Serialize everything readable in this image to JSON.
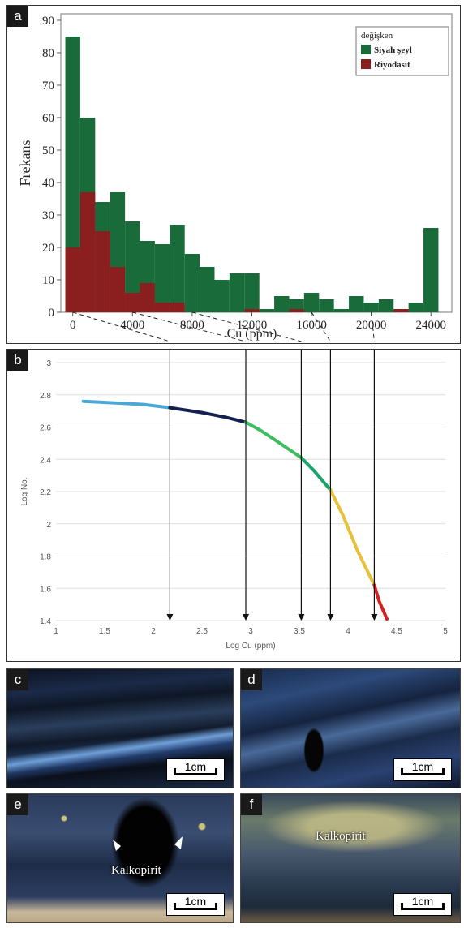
{
  "panels": {
    "a": "a",
    "b": "b",
    "c": "c",
    "d": "d",
    "e": "e",
    "f": "f"
  },
  "chart_data": [
    {
      "type": "bar",
      "panel": "a",
      "xlabel": "Cu (ppm)",
      "ylabel": "Frekans",
      "xlim": [
        -800,
        25400
      ],
      "ylim": [
        0,
        92
      ],
      "xticks": [
        0,
        4000,
        8000,
        12000,
        16000,
        20000,
        24000
      ],
      "xtick_labels": [
        "0",
        "4000",
        "8000",
        "12000",
        "16000",
        "20000",
        "24000"
      ],
      "yticks": [
        0,
        10,
        20,
        30,
        40,
        50,
        60,
        70,
        80,
        90
      ],
      "ytick_labels": [
        "0",
        "10",
        "20",
        "30",
        "40",
        "50",
        "60",
        "70",
        "80",
        "90"
      ],
      "bin_width": 1000,
      "bin_starts": [
        -500,
        500,
        1500,
        2500,
        3500,
        4500,
        5500,
        6500,
        7500,
        8500,
        9500,
        10500,
        11500,
        12500,
        13500,
        14500,
        15500,
        16500,
        17500,
        18500,
        19500,
        20500,
        21500,
        22500,
        23500
      ],
      "legend_title": "değişken",
      "legend_position": "top-right",
      "series": [
        {
          "name": "Siyah şeyl",
          "color": "#1a6b3a",
          "values": [
            85,
            60,
            34,
            37,
            28,
            22,
            21,
            27,
            18,
            14,
            10,
            12,
            12,
            1,
            5,
            4,
            6,
            4,
            1,
            5,
            3,
            4,
            1,
            3,
            26
          ]
        },
        {
          "name": "Riyodasit",
          "color": "#8b1e1e",
          "values": [
            20,
            37,
            25,
            14,
            6,
            9,
            3,
            3,
            0,
            0,
            0,
            0,
            1,
            0,
            0,
            1,
            0,
            0,
            0,
            0,
            0,
            0,
            1,
            0,
            0
          ]
        }
      ]
    },
    {
      "type": "line",
      "panel": "b",
      "xlabel": "Log Cu (ppm)",
      "ylabel": "Log No.",
      "xlim": [
        1,
        5
      ],
      "ylim": [
        1.4,
        3
      ],
      "xticks": [
        1,
        1.5,
        2,
        2.5,
        3,
        3.5,
        4,
        4.5,
        5
      ],
      "xtick_labels": [
        "1",
        "1.5",
        "2",
        "2.5",
        "3",
        "3.5",
        "4",
        "4.5",
        "5"
      ],
      "yticks": [
        1.4,
        1.6,
        1.8,
        2,
        2.2,
        2.4,
        2.6,
        2.8,
        3
      ],
      "ytick_labels": [
        "1.4",
        "1.6",
        "1.8",
        "2",
        "2.2",
        "2.4",
        "2.6",
        "2.8",
        "3"
      ],
      "series": [
        {
          "color": "#4aa8d8",
          "x": [
            1.28,
            1.6,
            1.9,
            2.17
          ],
          "y": [
            2.76,
            2.75,
            2.74,
            2.72
          ]
        },
        {
          "color": "#14204f",
          "x": [
            2.17,
            2.5,
            2.75,
            2.95
          ],
          "y": [
            2.72,
            2.69,
            2.66,
            2.63
          ]
        },
        {
          "color": "#3dbd5d",
          "x": [
            2.95,
            3.1,
            3.3,
            3.52
          ],
          "y": [
            2.63,
            2.58,
            2.5,
            2.41
          ]
        },
        {
          "color": "#1aa36a",
          "x": [
            3.52,
            3.65,
            3.82
          ],
          "y": [
            2.41,
            2.33,
            2.21
          ]
        },
        {
          "color": "#e8c13a",
          "x": [
            3.82,
            3.95,
            4.1,
            4.27
          ],
          "y": [
            2.21,
            2.05,
            1.83,
            1.62
          ]
        },
        {
          "color": "#d62020",
          "x": [
            4.27,
            4.32,
            4.4
          ],
          "y": [
            1.62,
            1.52,
            1.41
          ]
        }
      ],
      "threshold_x": [
        2.17,
        2.95,
        3.52,
        3.82,
        4.27
      ]
    }
  ],
  "photos": {
    "c": {
      "scale_label": "1cm"
    },
    "d": {
      "scale_label": "1cm"
    },
    "e": {
      "scale_label": "1cm",
      "mineral_label": "Kalkopirit"
    },
    "f": {
      "scale_label": "1cm",
      "mineral_label": "Kalkopirit"
    }
  }
}
